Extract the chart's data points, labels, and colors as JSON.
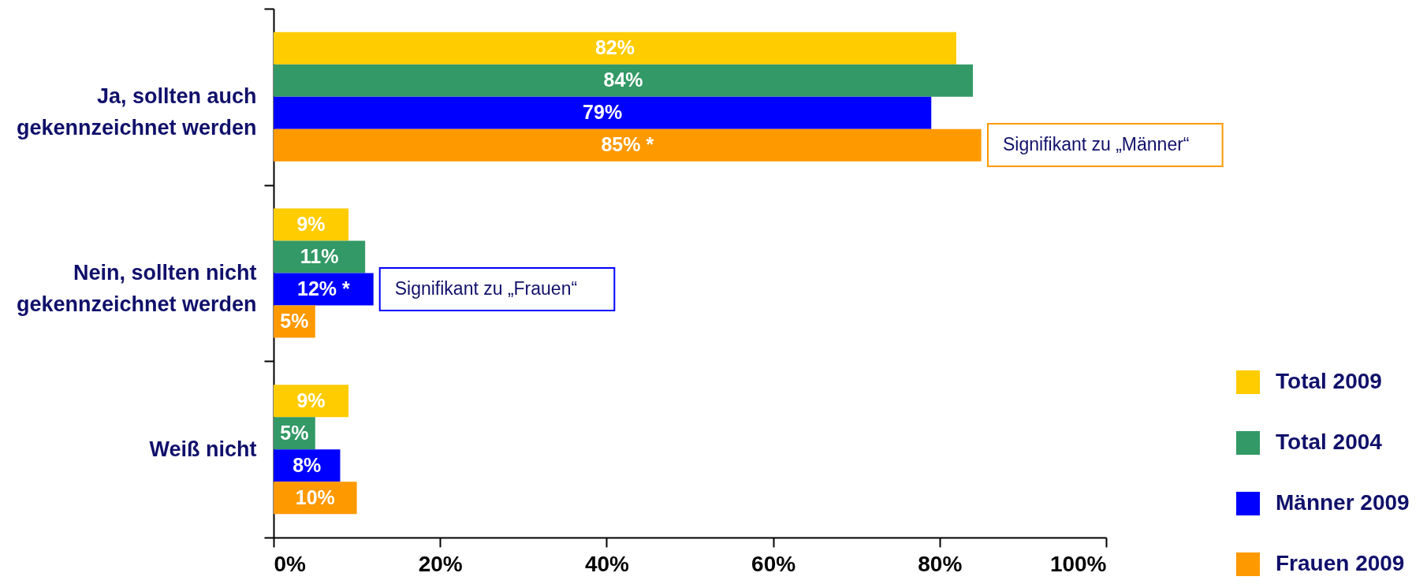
{
  "chart_data": {
    "type": "bar",
    "orientation": "horizontal",
    "categories": [
      "Ja, sollten auch gekennzeichnet werden",
      "Nein, sollten nicht gekennzeichnet werden",
      "Weiß nicht"
    ],
    "series": [
      {
        "name": "Total 2009",
        "color": "#ffcc00",
        "values": [
          82,
          9,
          9
        ],
        "value_labels": [
          "82%",
          "9%",
          "9%"
        ]
      },
      {
        "name": "Total 2004",
        "color": "#339966",
        "values": [
          84,
          11,
          5
        ],
        "value_labels": [
          "84%",
          "11%",
          "5%"
        ]
      },
      {
        "name": "Männer 2009",
        "color": "#0000ff",
        "values": [
          79,
          12,
          8
        ],
        "value_labels": [
          "79%",
          "12% *",
          "8%"
        ]
      },
      {
        "name": "Frauen 2009",
        "color": "#ff9900",
        "values": [
          85,
          5,
          10
        ],
        "value_labels": [
          "85% *",
          "5%",
          "10%"
        ]
      }
    ],
    "xlim": [
      0,
      100
    ],
    "xticks": [
      {
        "value": 0,
        "label": "0%"
      },
      {
        "value": 20,
        "label": "20%"
      },
      {
        "value": 40,
        "label": "40%"
      },
      {
        "value": 60,
        "label": "60%"
      },
      {
        "value": 80,
        "label": "80%"
      },
      {
        "value": 100,
        "label": "100%"
      }
    ],
    "legend": "bottom right",
    "annotations": [
      "Signifikant zu „Männer“",
      {
        "text": "Signifikant zu „Frauen“",
        "x": 12,
        "y": "Nein, sollten nicht gekennzeichnet werden"
      }
    ]
  }
}
